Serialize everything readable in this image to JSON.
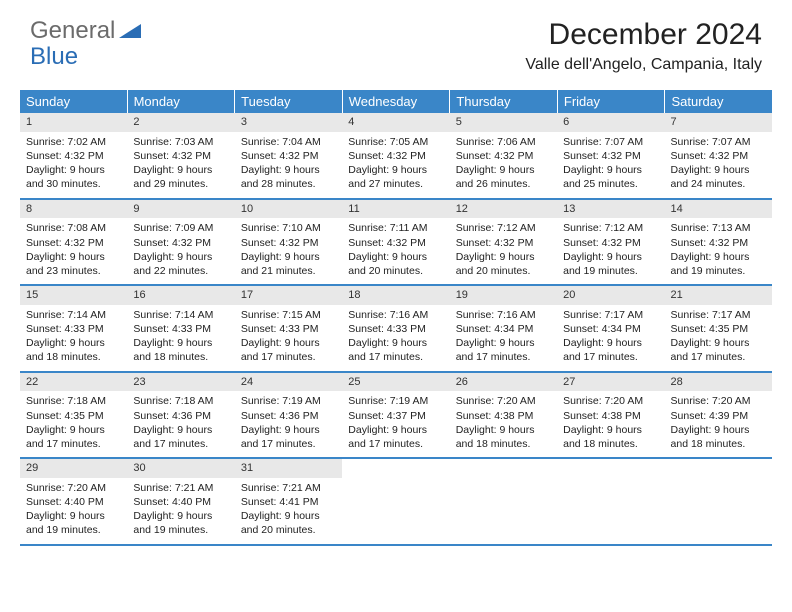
{
  "logo": {
    "text1": "General",
    "text2": "Blue"
  },
  "title": "December 2024",
  "location": "Valle dell'Angelo, Campania, Italy",
  "colors": {
    "header_bg": "#3a86c8",
    "header_text": "#ffffff",
    "daynum_bg": "#e8e8e8",
    "border": "#3a86c8",
    "logo_gray": "#6b6b6b",
    "logo_blue": "#2a6db5"
  },
  "dayNames": [
    "Sunday",
    "Monday",
    "Tuesday",
    "Wednesday",
    "Thursday",
    "Friday",
    "Saturday"
  ],
  "weeks": [
    [
      {
        "n": "1",
        "sunrise": "7:02 AM",
        "sunset": "4:32 PM",
        "dayh": "9",
        "daym": "30"
      },
      {
        "n": "2",
        "sunrise": "7:03 AM",
        "sunset": "4:32 PM",
        "dayh": "9",
        "daym": "29"
      },
      {
        "n": "3",
        "sunrise": "7:04 AM",
        "sunset": "4:32 PM",
        "dayh": "9",
        "daym": "28"
      },
      {
        "n": "4",
        "sunrise": "7:05 AM",
        "sunset": "4:32 PM",
        "dayh": "9",
        "daym": "27"
      },
      {
        "n": "5",
        "sunrise": "7:06 AM",
        "sunset": "4:32 PM",
        "dayh": "9",
        "daym": "26"
      },
      {
        "n": "6",
        "sunrise": "7:07 AM",
        "sunset": "4:32 PM",
        "dayh": "9",
        "daym": "25"
      },
      {
        "n": "7",
        "sunrise": "7:07 AM",
        "sunset": "4:32 PM",
        "dayh": "9",
        "daym": "24"
      }
    ],
    [
      {
        "n": "8",
        "sunrise": "7:08 AM",
        "sunset": "4:32 PM",
        "dayh": "9",
        "daym": "23"
      },
      {
        "n": "9",
        "sunrise": "7:09 AM",
        "sunset": "4:32 PM",
        "dayh": "9",
        "daym": "22"
      },
      {
        "n": "10",
        "sunrise": "7:10 AM",
        "sunset": "4:32 PM",
        "dayh": "9",
        "daym": "21"
      },
      {
        "n": "11",
        "sunrise": "7:11 AM",
        "sunset": "4:32 PM",
        "dayh": "9",
        "daym": "20"
      },
      {
        "n": "12",
        "sunrise": "7:12 AM",
        "sunset": "4:32 PM",
        "dayh": "9",
        "daym": "20"
      },
      {
        "n": "13",
        "sunrise": "7:12 AM",
        "sunset": "4:32 PM",
        "dayh": "9",
        "daym": "19"
      },
      {
        "n": "14",
        "sunrise": "7:13 AM",
        "sunset": "4:32 PM",
        "dayh": "9",
        "daym": "19"
      }
    ],
    [
      {
        "n": "15",
        "sunrise": "7:14 AM",
        "sunset": "4:33 PM",
        "dayh": "9",
        "daym": "18"
      },
      {
        "n": "16",
        "sunrise": "7:14 AM",
        "sunset": "4:33 PM",
        "dayh": "9",
        "daym": "18"
      },
      {
        "n": "17",
        "sunrise": "7:15 AM",
        "sunset": "4:33 PM",
        "dayh": "9",
        "daym": "17"
      },
      {
        "n": "18",
        "sunrise": "7:16 AM",
        "sunset": "4:33 PM",
        "dayh": "9",
        "daym": "17"
      },
      {
        "n": "19",
        "sunrise": "7:16 AM",
        "sunset": "4:34 PM",
        "dayh": "9",
        "daym": "17"
      },
      {
        "n": "20",
        "sunrise": "7:17 AM",
        "sunset": "4:34 PM",
        "dayh": "9",
        "daym": "17"
      },
      {
        "n": "21",
        "sunrise": "7:17 AM",
        "sunset": "4:35 PM",
        "dayh": "9",
        "daym": "17"
      }
    ],
    [
      {
        "n": "22",
        "sunrise": "7:18 AM",
        "sunset": "4:35 PM",
        "dayh": "9",
        "daym": "17"
      },
      {
        "n": "23",
        "sunrise": "7:18 AM",
        "sunset": "4:36 PM",
        "dayh": "9",
        "daym": "17"
      },
      {
        "n": "24",
        "sunrise": "7:19 AM",
        "sunset": "4:36 PM",
        "dayh": "9",
        "daym": "17"
      },
      {
        "n": "25",
        "sunrise": "7:19 AM",
        "sunset": "4:37 PM",
        "dayh": "9",
        "daym": "17"
      },
      {
        "n": "26",
        "sunrise": "7:20 AM",
        "sunset": "4:38 PM",
        "dayh": "9",
        "daym": "18"
      },
      {
        "n": "27",
        "sunrise": "7:20 AM",
        "sunset": "4:38 PM",
        "dayh": "9",
        "daym": "18"
      },
      {
        "n": "28",
        "sunrise": "7:20 AM",
        "sunset": "4:39 PM",
        "dayh": "9",
        "daym": "18"
      }
    ],
    [
      {
        "n": "29",
        "sunrise": "7:20 AM",
        "sunset": "4:40 PM",
        "dayh": "9",
        "daym": "19"
      },
      {
        "n": "30",
        "sunrise": "7:21 AM",
        "sunset": "4:40 PM",
        "dayh": "9",
        "daym": "19"
      },
      {
        "n": "31",
        "sunrise": "7:21 AM",
        "sunset": "4:41 PM",
        "dayh": "9",
        "daym": "20"
      },
      {
        "empty": true
      },
      {
        "empty": true
      },
      {
        "empty": true
      },
      {
        "empty": true
      }
    ]
  ],
  "labels": {
    "sunrise": "Sunrise:",
    "sunset": "Sunset:",
    "daylight_prefix": "Daylight:",
    "hours": "hours",
    "and": "and",
    "minutes": "minutes."
  }
}
